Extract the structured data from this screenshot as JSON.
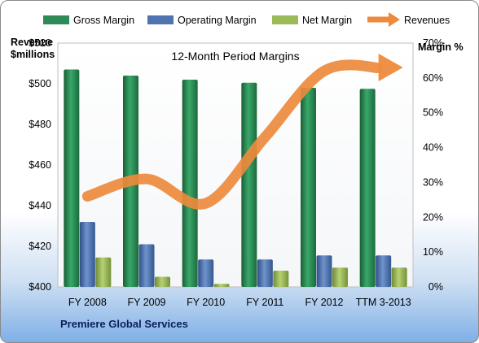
{
  "chart_data": {
    "type": "bar",
    "title": "12-Month Period Margins",
    "categories": [
      "FY 2008",
      "FY 2009",
      "FY 2010",
      "FY 2011",
      "FY 2012",
      "TTM 3-2013"
    ],
    "series": [
      {
        "name": "Gross Margin",
        "axis": "left",
        "color": "#2e8b57",
        "values": [
          507,
          504,
          502,
          500.5,
          498,
          497.5
        ]
      },
      {
        "name": "Operating Margin",
        "axis": "left",
        "color": "#4f74b0",
        "values": [
          432,
          421,
          413.5,
          413.5,
          415.5,
          415.5
        ]
      },
      {
        "name": "Net Margin",
        "axis": "left",
        "color": "#9bbb59",
        "values": [
          414.5,
          405,
          401.5,
          408,
          409.5,
          409.5
        ]
      },
      {
        "name": "Revenues",
        "axis": "right",
        "type": "line",
        "color": "#ed8a3c",
        "values": [
          26,
          31,
          24,
          43,
          62,
          63
        ]
      }
    ],
    "y_left": {
      "label_line1": "Revenue",
      "label_line2": "$millions",
      "min": 400,
      "max": 520,
      "step": 20,
      "ticks": [
        "$400",
        "$420",
        "$440",
        "$460",
        "$480",
        "$500",
        "$520"
      ]
    },
    "y_right": {
      "label": "Margin %",
      "min": 0,
      "max": 70,
      "step": 10,
      "ticks": [
        "0%",
        "10%",
        "20%",
        "30%",
        "40%",
        "50%",
        "60%",
        "70%"
      ]
    },
    "legend_position": "top",
    "grid": false,
    "footer": "Premiere Global Services"
  }
}
